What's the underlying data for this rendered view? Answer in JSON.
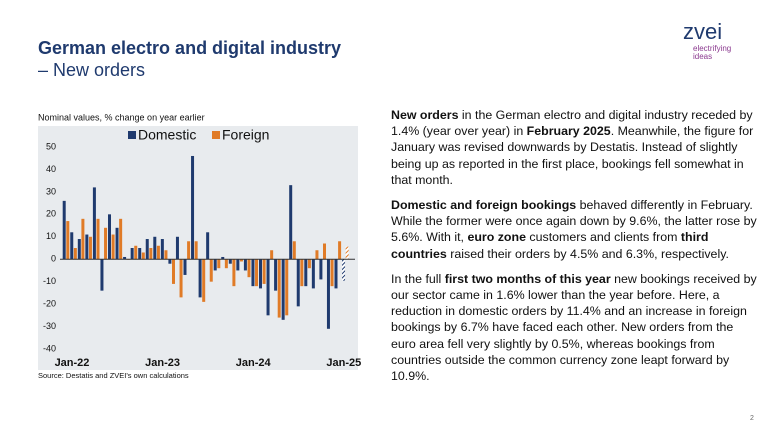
{
  "header": {
    "title": "German electro and digital industry",
    "subtitle": "– New orders"
  },
  "logo": {
    "name": "zvei",
    "tagline": [
      "electrifying",
      "ideas"
    ]
  },
  "chart_data": {
    "type": "bar",
    "note": "Nominal values, % change on year earlier",
    "source": "Source: Destatis and ZVEI's own calculations",
    "categories": [
      "Jan-22",
      null,
      null,
      null,
      null,
      null,
      null,
      null,
      null,
      null,
      null,
      null,
      "Jan-23",
      null,
      null,
      null,
      null,
      null,
      null,
      null,
      null,
      null,
      null,
      null,
      "Jan-24",
      null,
      null,
      null,
      null,
      null,
      null,
      null,
      null,
      null,
      null,
      null,
      "Jan-25",
      null
    ],
    "series": [
      {
        "name": "Domestic",
        "color": "#1f3a6e",
        "values": [
          26,
          12,
          9,
          11,
          32,
          -14,
          20,
          14,
          1,
          5,
          5,
          9,
          10,
          9,
          -2,
          10,
          -7,
          46,
          -17,
          12,
          -5,
          1,
          -2,
          -5,
          -5,
          -12,
          -13,
          -25,
          -14,
          -27,
          33,
          -21,
          -12,
          -13,
          -9,
          -31,
          -13,
          -9.6
        ]
      },
      {
        "name": "Foreign",
        "color": "#e07b27",
        "values": [
          17,
          5,
          18,
          10,
          18,
          14,
          11,
          18,
          0,
          6,
          3,
          5,
          6,
          4,
          -11,
          -17,
          8,
          8,
          -19,
          -10,
          -4,
          -4,
          -12,
          -1,
          -8,
          -12,
          -11,
          4,
          -26,
          -25,
          8,
          -12,
          -4,
          4,
          7,
          -12,
          8,
          5.6
        ]
      }
    ],
    "ylim": [
      -40,
      50
    ],
    "yticks": [
      -40,
      {
        "value": -30,
        "label": "-30"
      },
      -20,
      -10,
      0,
      10,
      20,
      30,
      40,
      50
    ],
    "grid": false,
    "legend": "top"
  },
  "text": {
    "paragraphs": [
      [
        {
          "text": "New orders",
          "bold": true
        },
        {
          "text": " in the German electro and digital industry receded by 1.4% (year over year) in "
        },
        {
          "text": "February 2025",
          "bold": true
        },
        {
          "text": ". Meanwhile, the figure for January was revised downwards by Destatis. Instead of slightly being up as reported in the first place, bookings fell somewhat in that month."
        }
      ],
      [
        {
          "text": "Domestic and foreign bookings",
          "bold": true
        },
        {
          "text": " behaved differently in February. While the former were once again down by 9.6%, the latter rose by 5.6%. With it, "
        },
        {
          "text": "euro zone",
          "bold": true
        },
        {
          "text": " customers and clients from "
        },
        {
          "text": "third countries",
          "bold": true
        },
        {
          "text": " raised their orders by 4.5% and 6.3%, respectively."
        }
      ],
      [
        {
          "text": "In the full "
        },
        {
          "text": "first two months of this year",
          "bold": true
        },
        {
          "text": " new bookings received by our sector came in 1.6% lower than the year before. Here, a reduction in domestic orders by 11.4% and an increase in foreign bookings by 6.7% have faced each other. New orders from the euro area fell very slightly by 0.5%, whereas bookings from countries outside the common currency zone leapt forward by 10.9%."
        }
      ]
    ]
  },
  "page_number": "2"
}
